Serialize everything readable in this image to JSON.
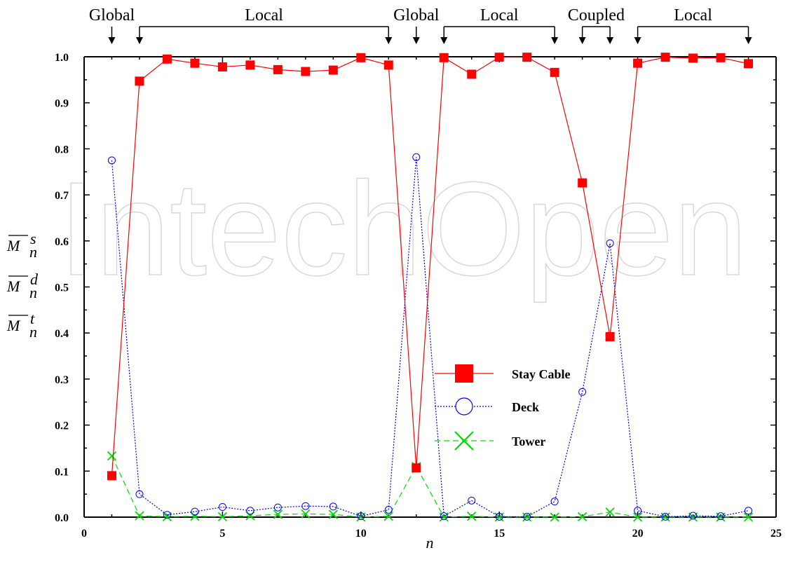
{
  "colors": {
    "stay_cable": "#ff0000",
    "deck": "#0000ff",
    "tower": "#00dd00",
    "axis": "#000000",
    "watermark": "#d0d0d0"
  },
  "watermark": "IntechOpen",
  "chart_data": {
    "type": "line",
    "xlabel": "n",
    "ylabel_lines": [
      {
        "base": "M",
        "sup": "s",
        "sub": "n"
      },
      {
        "base": "M",
        "sup": "d",
        "sub": "n"
      },
      {
        "base": "M",
        "sup": "t",
        "sub": "n"
      }
    ],
    "xlim": [
      0,
      25
    ],
    "ylim": [
      0,
      1.0
    ],
    "x_ticks": [
      "0",
      "5",
      "10",
      "15",
      "20",
      "25"
    ],
    "y_ticks": [
      "0.0",
      "0.1",
      "0.2",
      "0.3",
      "0.4",
      "0.5",
      "0.6",
      "0.7",
      "0.8",
      "0.9",
      "1.0"
    ],
    "x": [
      1,
      2,
      3,
      4,
      5,
      6,
      7,
      8,
      9,
      10,
      11,
      12,
      13,
      14,
      15,
      16,
      17,
      18,
      19,
      20,
      21,
      22,
      23,
      24
    ],
    "series": [
      {
        "name": "Stay Cable",
        "marker": "filled-square",
        "line": "solid",
        "color": "#ff0000",
        "values": [
          0.09,
          0.947,
          0.995,
          0.986,
          0.978,
          0.982,
          0.972,
          0.968,
          0.971,
          0.998,
          0.982,
          0.107,
          0.998,
          0.962,
          0.999,
          0.999,
          0.966,
          0.726,
          0.392,
          0.986,
          0.999,
          0.997,
          0.998,
          0.985
        ]
      },
      {
        "name": "Deck",
        "marker": "open-circle",
        "line": "dotted",
        "color": "#0000ff",
        "values": [
          0.775,
          0.05,
          0.005,
          0.012,
          0.022,
          0.014,
          0.021,
          0.024,
          0.023,
          0.002,
          0.016,
          0.782,
          0.002,
          0.036,
          0.001,
          0.001,
          0.034,
          0.272,
          0.595,
          0.014,
          0.001,
          0.003,
          0.002,
          0.014
        ]
      },
      {
        "name": "Tower",
        "marker": "x",
        "line": "dashed",
        "color": "#00dd00",
        "values": [
          0.133,
          0.003,
          0.001,
          0.002,
          0.001,
          0.003,
          0.006,
          0.007,
          0.006,
          0.0,
          0.002,
          0.11,
          0.0,
          0.002,
          0.0,
          0.0,
          0.0,
          0.001,
          0.011,
          0.0,
          0.0,
          0.0,
          0.0,
          0.0
        ]
      }
    ],
    "legend_position": "center-right",
    "mode_groups": [
      {
        "label": "Global",
        "from": 1,
        "to": 1
      },
      {
        "label": "Local",
        "from": 2,
        "to": 11
      },
      {
        "label": "Global",
        "from": 12,
        "to": 12
      },
      {
        "label": "Local",
        "from": 13,
        "to": 17
      },
      {
        "label": "Coupled",
        "from": 18,
        "to": 19
      },
      {
        "label": "Local",
        "from": 20,
        "to": 24
      }
    ]
  }
}
